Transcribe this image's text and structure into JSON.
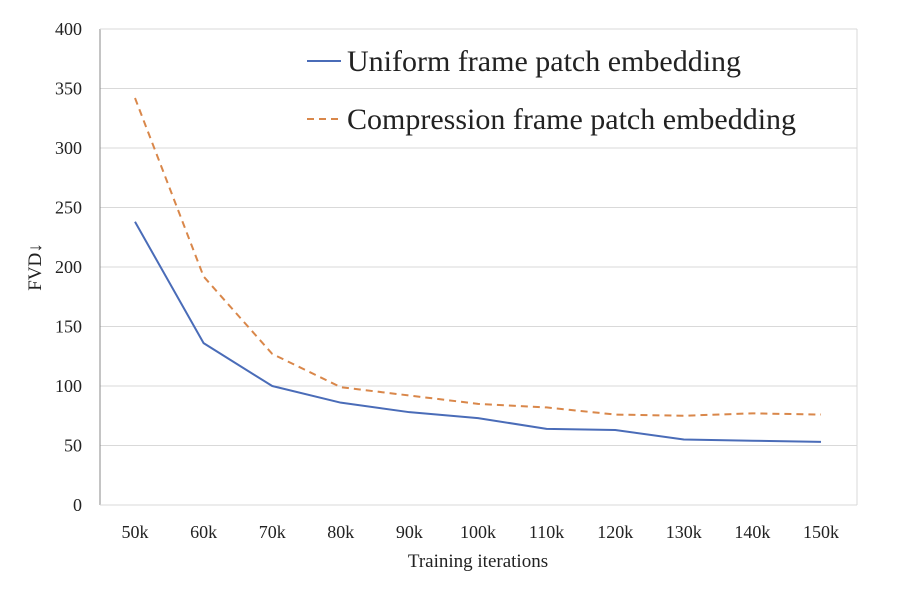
{
  "chart_data": {
    "type": "line",
    "title": "",
    "xlabel": "Training iterations",
    "ylabel": "FVD↓",
    "categories": [
      "50k",
      "60k",
      "70k",
      "80k",
      "90k",
      "100k",
      "110k",
      "120k",
      "130k",
      "140k",
      "150k"
    ],
    "ylim": [
      0,
      400
    ],
    "yticks": [
      0,
      50,
      100,
      150,
      200,
      250,
      300,
      350,
      400
    ],
    "grid": true,
    "legend_position": "top-right",
    "series": [
      {
        "name": "Uniform frame patch embedding",
        "color": "#4a6cb8",
        "style": "solid",
        "values": [
          238,
          136,
          100,
          86,
          78,
          73,
          64,
          63,
          55,
          54,
          53
        ]
      },
      {
        "name": "Compression frame patch embedding",
        "color": "#d9874a",
        "style": "dashed",
        "values": [
          342,
          192,
          127,
          99,
          92,
          85,
          82,
          76,
          75,
          77,
          76
        ]
      }
    ]
  }
}
